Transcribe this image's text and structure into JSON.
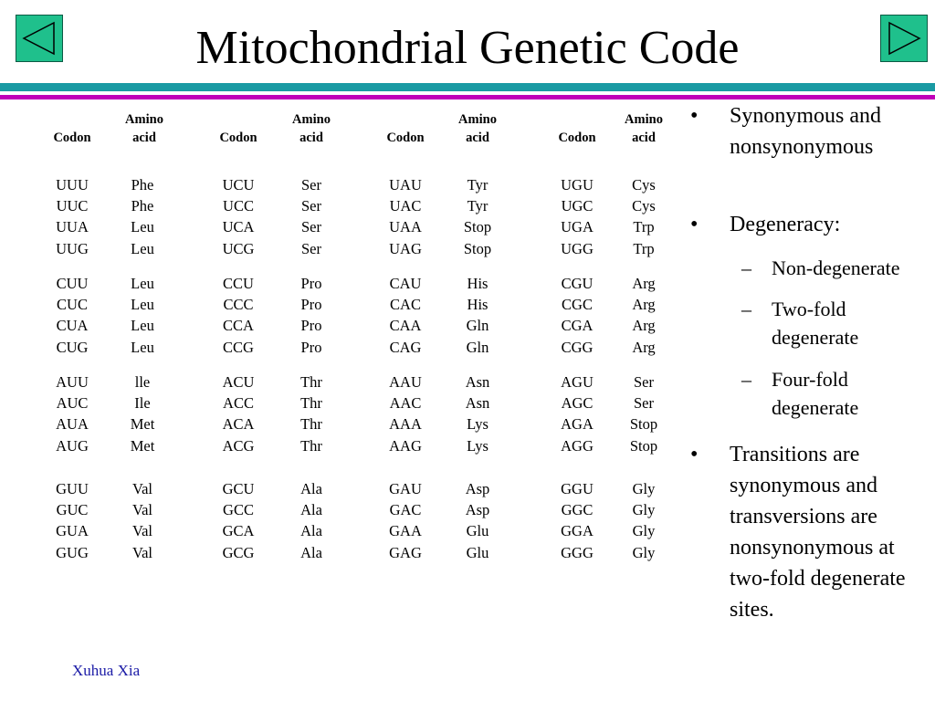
{
  "title": "Mitochondrial Genetic Code",
  "nav": {
    "prev_icon": "triangle-left-icon",
    "next_icon": "triangle-right-icon",
    "button_color": "#1fc08c"
  },
  "colors": {
    "bar_teal": "#1a9aa3",
    "bar_magenta": "#c000b8",
    "footer": "#1a1aa6"
  },
  "table": {
    "headers": {
      "codon": "Codon",
      "amino_line1": "Amino",
      "amino_line2": "acid"
    },
    "groups": [
      {
        "rows": [
          [
            "UUU",
            "Phe",
            "UCU",
            "Ser",
            "UAU",
            "Tyr",
            "UGU",
            "Cys"
          ],
          [
            "UUC",
            "Phe",
            "UCC",
            "Ser",
            "UAC",
            "Tyr",
            "UGC",
            "Cys"
          ],
          [
            "UUA",
            "Leu",
            "UCA",
            "Ser",
            "UAA",
            "Stop",
            "UGA",
            "Trp"
          ],
          [
            "UUG",
            "Leu",
            "UCG",
            "Ser",
            "UAG",
            "Stop",
            "UGG",
            "Trp"
          ]
        ]
      },
      {
        "rows": [
          [
            "CUU",
            "Leu",
            "CCU",
            "Pro",
            "CAU",
            "His",
            "CGU",
            "Arg"
          ],
          [
            "CUC",
            "Leu",
            "CCC",
            "Pro",
            "CAC",
            "His",
            "CGC",
            "Arg"
          ],
          [
            "CUA",
            "Leu",
            "CCA",
            "Pro",
            "CAA",
            "Gln",
            "CGA",
            "Arg"
          ],
          [
            "CUG",
            "Leu",
            "CCG",
            "Pro",
            "CAG",
            "Gln",
            "CGG",
            "Arg"
          ]
        ]
      },
      {
        "rows": [
          [
            "AUU",
            "lle",
            "ACU",
            "Thr",
            "AAU",
            "Asn",
            "AGU",
            "Ser"
          ],
          [
            "AUC",
            "Ile",
            "ACC",
            "Thr",
            "AAC",
            "Asn",
            "AGC",
            "Ser"
          ],
          [
            "AUA",
            "Met",
            "ACA",
            "Thr",
            "AAA",
            "Lys",
            "AGA",
            "Stop"
          ],
          [
            "AUG",
            "Met",
            "ACG",
            "Thr",
            "AAG",
            "Lys",
            "AGG",
            "Stop"
          ]
        ]
      },
      {
        "rows": [
          [
            "GUU",
            "Val",
            "GCU",
            "Ala",
            "GAU",
            "Asp",
            "GGU",
            "Gly"
          ],
          [
            "GUC",
            "Val",
            "GCC",
            "Ala",
            "GAC",
            "Asp",
            "GGC",
            "Gly"
          ],
          [
            "GUA",
            "Val",
            "GCA",
            "Ala",
            "GAA",
            "Glu",
            "GGA",
            "Gly"
          ],
          [
            "GUG",
            "Val",
            "GCG",
            "Ala",
            "GAG",
            "Glu",
            "GGG",
            "Gly"
          ]
        ]
      }
    ]
  },
  "bullets": [
    {
      "level": 1,
      "marker": "•",
      "text": "Synonymous and nonsynonymous"
    },
    {
      "level": 1,
      "marker": "•",
      "text": "Degeneracy:"
    },
    {
      "level": 2,
      "marker": "–",
      "text": "Non-degenerate"
    },
    {
      "level": 2,
      "marker": "–",
      "text": "Two-fold degenerate"
    },
    {
      "level": 2,
      "marker": "–",
      "text": "Four-fold degenerate"
    },
    {
      "level": 1,
      "marker": "•",
      "text": "Transitions are synonymous and transversions are nonsynonymous at two-fold degenerate sites."
    }
  ],
  "footer": "Xuhua Xia"
}
